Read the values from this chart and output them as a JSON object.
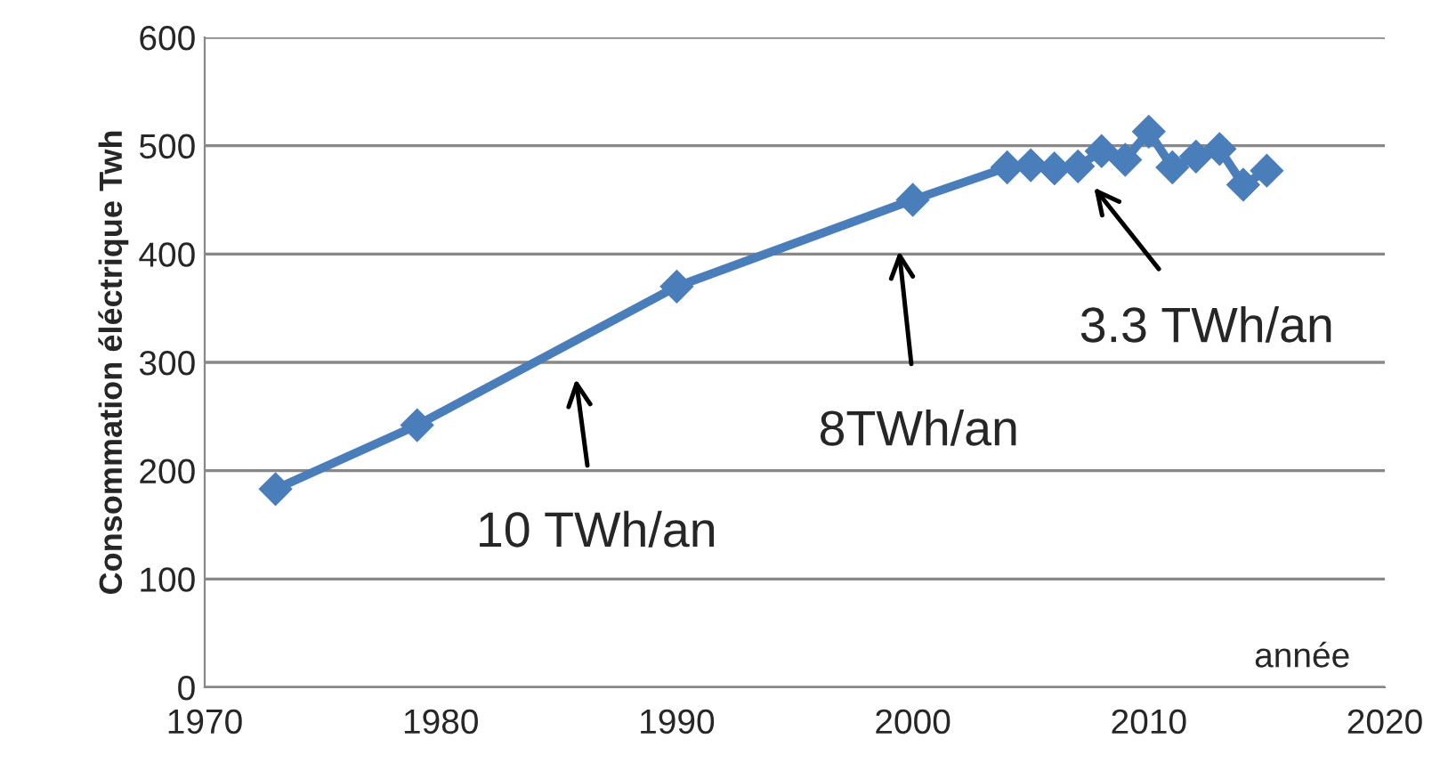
{
  "chart_data": {
    "type": "line",
    "xlabel": "année",
    "ylabel": "Consommation éléctrique Twh",
    "x": [
      1973,
      1979,
      1990,
      2000,
      2004,
      2005,
      2006,
      2007,
      2008,
      2009,
      2010,
      2011,
      2012,
      2013,
      2014,
      2015
    ],
    "series": [
      {
        "color": "#4a7ebb",
        "values": [
          183,
          242,
          370,
          450,
          480,
          482,
          479,
          481,
          495,
          487,
          513,
          480,
          490,
          497,
          464,
          477
        ]
      }
    ],
    "xlim": [
      1970,
      2020
    ],
    "xticks": [
      1970,
      1980,
      1990,
      2000,
      2010,
      2020
    ],
    "ylim": [
      0,
      600
    ],
    "yticks": [
      0,
      100,
      200,
      300,
      400,
      500,
      600
    ],
    "grid": "y",
    "marker": "diamond",
    "line_style": "solid",
    "legend": false,
    "annotations": [
      "10 TWh/an",
      "8TWh/an",
      "3.3 TWh/an"
    ]
  }
}
